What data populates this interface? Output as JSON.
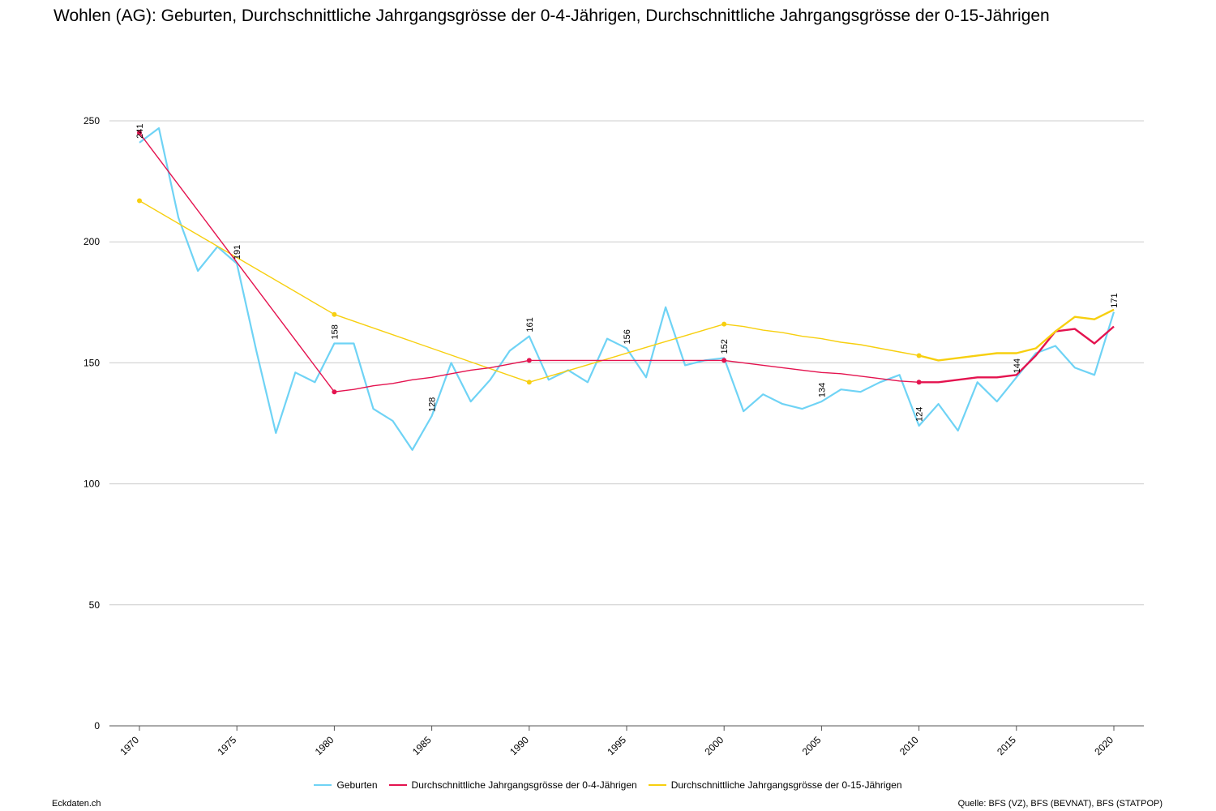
{
  "title": "Wohlen (AG): Geburten, Durchschnittliche Jahrgangsgrösse der 0-4-Jährigen, Durchschnittliche Jahrgangsgrösse der 0-15-Jährigen",
  "footer": {
    "left": "Eckdaten.ch",
    "right": "Quelle: BFS (VZ), BFS (BEVNAT), BFS (STATPOP)"
  },
  "chart_data": {
    "type": "line",
    "xlim": [
      1970,
      2020
    ],
    "ylim": [
      0,
      250
    ],
    "yticks": [
      0,
      50,
      100,
      150,
      200,
      250
    ],
    "xticks": [
      1970,
      1975,
      1980,
      1985,
      1990,
      1995,
      2000,
      2005,
      2010,
      2015,
      2020
    ],
    "grid": true,
    "legend_position": "bottom",
    "series": [
      {
        "name": "Geburten",
        "color": "#6fd3f5",
        "x": [
          1970,
          1971,
          1972,
          1973,
          1974,
          1975,
          1976,
          1977,
          1978,
          1979,
          1980,
          1981,
          1982,
          1983,
          1984,
          1985,
          1986,
          1987,
          1988,
          1989,
          1990,
          1991,
          1992,
          1993,
          1994,
          1995,
          1996,
          1997,
          1998,
          1999,
          2000,
          2001,
          2002,
          2003,
          2004,
          2005,
          2006,
          2007,
          2008,
          2009,
          2010,
          2011,
          2012,
          2013,
          2014,
          2015,
          2016,
          2017,
          2018,
          2019,
          2020
        ],
        "y": [
          241,
          247,
          210,
          188,
          198,
          191,
          155,
          121,
          146,
          142,
          158,
          158,
          131,
          126,
          114,
          128,
          150,
          134,
          143,
          155,
          161,
          143,
          147,
          142,
          160,
          156,
          144,
          173,
          149,
          151,
          152,
          130,
          137,
          133,
          131,
          134,
          139,
          138,
          142,
          145,
          124,
          133,
          122,
          142,
          134,
          144,
          154,
          157,
          148,
          145,
          171
        ],
        "labels": [
          {
            "x": 1970,
            "text": "241"
          },
          {
            "x": 1975,
            "text": "191"
          },
          {
            "x": 1980,
            "text": "158"
          },
          {
            "x": 1985,
            "text": "128"
          },
          {
            "x": 1990,
            "text": "161"
          },
          {
            "x": 1995,
            "text": "156"
          },
          {
            "x": 2000,
            "text": "152"
          },
          {
            "x": 2005,
            "text": "134"
          },
          {
            "x": 2010,
            "text": "124"
          },
          {
            "x": 2015,
            "text": "144"
          },
          {
            "x": 2020,
            "text": "171"
          }
        ]
      },
      {
        "name": "Durchschnittliche Jahrgangsgrösse der 0-4-Jährigen",
        "color": "#e4134f",
        "x": [
          1970,
          1980,
          1981,
          1982,
          1983,
          1984,
          1985,
          1986,
          1987,
          1988,
          1989,
          1990,
          1991,
          1992,
          1993,
          1994,
          1995,
          1996,
          1997,
          1998,
          1999,
          2000,
          2001,
          2002,
          2003,
          2004,
          2005,
          2006,
          2007,
          2008,
          2009,
          2010,
          2011,
          2012,
          2013,
          2014,
          2015,
          2016,
          2017,
          2018,
          2019,
          2020
        ],
        "y": [
          245,
          138,
          139,
          140.5,
          141.5,
          143,
          144,
          145.5,
          147,
          148,
          149.5,
          151,
          151,
          151,
          151,
          151,
          151,
          151,
          151,
          151,
          151,
          151,
          150,
          149,
          148,
          147,
          146,
          145.5,
          144.5,
          143.5,
          142.5,
          142,
          142,
          143,
          144,
          144,
          145,
          153,
          163,
          164,
          158,
          165
        ],
        "markers": [
          1970,
          1980,
          1990,
          2000,
          2010
        ]
      },
      {
        "name": "Durchschnittliche Jahrgangsgrösse der 0-15-Jährigen",
        "color": "#f7cf0f",
        "x": [
          1970,
          1980,
          1990,
          2000,
          2001,
          2002,
          2003,
          2004,
          2005,
          2006,
          2007,
          2008,
          2009,
          2010,
          2011,
          2012,
          2013,
          2014,
          2015,
          2016,
          2017,
          2018,
          2019,
          2020
        ],
        "y": [
          217,
          170,
          142,
          166,
          165,
          163.5,
          162.5,
          161,
          160,
          158.5,
          157.5,
          156,
          154.5,
          153,
          151,
          152,
          153,
          154,
          154,
          156,
          163,
          169,
          168,
          172
        ],
        "markers": [
          1970,
          1980,
          1990,
          2000,
          2010
        ]
      }
    ]
  }
}
